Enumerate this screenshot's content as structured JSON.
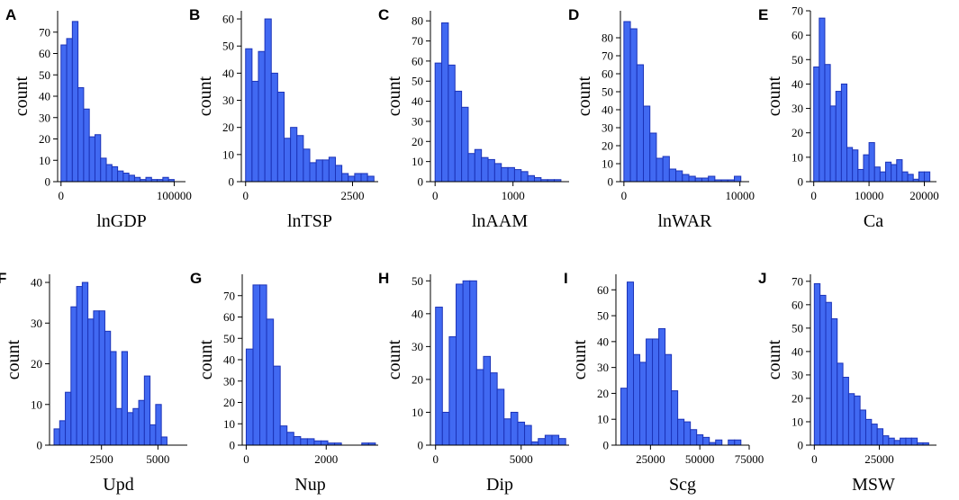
{
  "chart_data": [
    {
      "letter": "A",
      "type": "bar",
      "title": "",
      "xlabel": "lnGDP",
      "ylabel": "count",
      "bin_start": 0,
      "bin_width": 5000,
      "values": [
        64,
        67,
        75,
        44,
        34,
        21,
        22,
        11,
        8,
        7,
        5,
        4,
        3,
        2,
        1,
        2,
        1,
        1,
        2,
        1
      ],
      "xlim": [
        -3000,
        110000
      ],
      "ylim": [
        0,
        80
      ],
      "xticks": [
        0,
        100000
      ],
      "xtick_labels": [
        "0",
        "100000"
      ],
      "yticks": [
        0,
        10,
        20,
        30,
        40,
        50,
        60,
        70
      ],
      "ytick_labels": [
        "0",
        "10",
        "20",
        "30",
        "40",
        "50",
        "60",
        "70"
      ]
    },
    {
      "letter": "B",
      "type": "bar",
      "title": "",
      "xlabel": "lnTSP",
      "ylabel": "count",
      "bin_start": 0,
      "bin_width": 150,
      "values": [
        49,
        37,
        48,
        60,
        40,
        33,
        16,
        20,
        17,
        12,
        7,
        8,
        8,
        9,
        6,
        3,
        2,
        3,
        3,
        2
      ],
      "xlim": [
        -100,
        3100
      ],
      "ylim": [
        0,
        63
      ],
      "xticks": [
        0,
        2500
      ],
      "xtick_labels": [
        "0",
        "2500"
      ],
      "yticks": [
        0,
        10,
        20,
        30,
        40,
        50,
        60
      ],
      "ytick_labels": [
        "0",
        "10",
        "20",
        "30",
        "40",
        "50",
        "60"
      ]
    },
    {
      "letter": "C",
      "type": "bar",
      "title": "",
      "xlabel": "lnAAM",
      "ylabel": "count",
      "bin_start": 0,
      "bin_width": 85,
      "values": [
        59,
        79,
        58,
        45,
        37,
        14,
        16,
        12,
        11,
        9,
        7,
        7,
        6,
        5,
        3,
        2,
        1,
        1,
        1
      ],
      "xlim": [
        -60,
        1720
      ],
      "ylim": [
        0,
        85
      ],
      "xticks": [
        0,
        1000
      ],
      "xtick_labels": [
        "0",
        "1000"
      ],
      "yticks": [
        0,
        10,
        20,
        30,
        40,
        50,
        60,
        70,
        80
      ],
      "ytick_labels": [
        "0",
        "10",
        "20",
        "30",
        "40",
        "50",
        "60",
        "70",
        "80"
      ]
    },
    {
      "letter": "D",
      "type": "bar",
      "title": "",
      "xlabel": "lnWAR",
      "ylabel": "count",
      "bin_start": 0,
      "bin_width": 560,
      "values": [
        89,
        85,
        65,
        42,
        27,
        13,
        14,
        7,
        6,
        4,
        3,
        2,
        2,
        3,
        1,
        1,
        1,
        3
      ],
      "xlim": [
        -300,
        10800
      ],
      "ylim": [
        0,
        95
      ],
      "xticks": [
        0,
        10000
      ],
      "xtick_labels": [
        "0",
        "10000"
      ],
      "yticks": [
        0,
        10,
        20,
        30,
        40,
        50,
        60,
        70,
        80
      ],
      "ytick_labels": [
        "0",
        "10",
        "20",
        "30",
        "40",
        "50",
        "60",
        "70",
        "80"
      ]
    },
    {
      "letter": "E",
      "type": "bar",
      "title": "",
      "xlabel": "Ca",
      "ylabel": "count",
      "bin_start": 0,
      "bin_width": 1000,
      "values": [
        47,
        67,
        48,
        31,
        37,
        40,
        14,
        13,
        5,
        11,
        16,
        6,
        4,
        8,
        7,
        9,
        4,
        3,
        1,
        4,
        4
      ],
      "xlim": [
        -600,
        22200
      ],
      "ylim": [
        0,
        70
      ],
      "xticks": [
        0,
        10000,
        20000
      ],
      "xtick_labels": [
        "0",
        "10000",
        "20000"
      ],
      "yticks": [
        0,
        10,
        20,
        30,
        40,
        50,
        60,
        70
      ],
      "ytick_labels": [
        "0",
        "10",
        "20",
        "30",
        "40",
        "50",
        "60",
        "70"
      ]
    },
    {
      "letter": "F",
      "type": "bar",
      "title": "",
      "xlabel": "Upd",
      "ylabel": "count",
      "bin_start": 400,
      "bin_width": 250,
      "values": [
        4,
        6,
        13,
        34,
        39,
        40,
        31,
        33,
        33,
        28,
        23,
        9,
        23,
        8,
        9,
        11,
        17,
        5,
        10,
        2
      ],
      "xlim": [
        200,
        6300
      ],
      "ylim": [
        0,
        42
      ],
      "xticks": [
        2500,
        5000
      ],
      "xtick_labels": [
        "2500",
        "5000"
      ],
      "yticks": [
        0,
        10,
        20,
        30,
        40
      ],
      "ytick_labels": [
        "0",
        "10",
        "20",
        "30",
        "40"
      ]
    },
    {
      "letter": "G",
      "type": "bar",
      "title": "",
      "xlabel": "Nup",
      "ylabel": "count",
      "bin_start": 0,
      "bin_width": 170,
      "values": [
        45,
        75,
        75,
        59,
        37,
        9,
        6,
        4,
        3,
        3,
        2,
        2,
        1,
        1,
        0,
        0,
        0,
        1,
        1
      ],
      "xlim": [
        -100,
        3300
      ],
      "ylim": [
        0,
        80
      ],
      "xticks": [
        0,
        2000
      ],
      "xtick_labels": [
        "0",
        "2000"
      ],
      "yticks": [
        0,
        10,
        20,
        30,
        40,
        50,
        60,
        70
      ],
      "ytick_labels": [
        "0",
        "10",
        "20",
        "30",
        "40",
        "50",
        "60",
        "70"
      ]
    },
    {
      "letter": "H",
      "type": "bar",
      "title": "",
      "xlabel": "Dip",
      "ylabel": "count",
      "bin_start": 0,
      "bin_width": 400,
      "values": [
        42,
        10,
        33,
        49,
        50,
        50,
        23,
        27,
        22,
        17,
        8,
        10,
        7,
        6,
        1,
        2,
        3,
        3,
        2
      ],
      "xlim": [
        -300,
        7800
      ],
      "ylim": [
        0,
        52
      ],
      "xticks": [
        0,
        5000
      ],
      "xtick_labels": [
        "0",
        "5000"
      ],
      "yticks": [
        0,
        10,
        20,
        30,
        40,
        50
      ],
      "ytick_labels": [
        "0",
        "10",
        "20",
        "30",
        "40",
        "50"
      ]
    },
    {
      "letter": "I",
      "type": "bar",
      "title": "",
      "xlabel": "Scg",
      "ylabel": "count",
      "bin_start": 10000,
      "bin_width": 3200,
      "values": [
        22,
        63,
        35,
        32,
        41,
        41,
        45,
        35,
        21,
        10,
        9,
        6,
        4,
        3,
        1,
        2,
        0,
        2,
        2
      ],
      "xlim": [
        7500,
        75000
      ],
      "ylim": [
        0,
        66
      ],
      "xticks": [
        25000,
        50000,
        75000
      ],
      "xtick_labels": [
        "25000",
        "50000",
        "75000"
      ],
      "yticks": [
        0,
        10,
        20,
        30,
        40,
        50,
        60
      ],
      "ytick_labels": [
        "0",
        "10",
        "20",
        "30",
        "40",
        "50",
        "60"
      ]
    },
    {
      "letter": "J",
      "type": "bar",
      "title": "",
      "xlabel": "MSW",
      "ylabel": "count",
      "bin_start": 0,
      "bin_width": 2200,
      "values": [
        69,
        64,
        61,
        54,
        35,
        29,
        22,
        21,
        15,
        11,
        9,
        7,
        4,
        3,
        2,
        3,
        3,
        3,
        1,
        1
      ],
      "xlim": [
        -1500,
        47000
      ],
      "ylim": [
        0,
        73
      ],
      "xticks": [
        0,
        25000
      ],
      "xtick_labels": [
        "0",
        "25000"
      ],
      "yticks": [
        0,
        10,
        20,
        30,
        40,
        50,
        60,
        70
      ],
      "ytick_labels": [
        "0",
        "10",
        "20",
        "30",
        "40",
        "50",
        "60",
        "70"
      ]
    }
  ]
}
